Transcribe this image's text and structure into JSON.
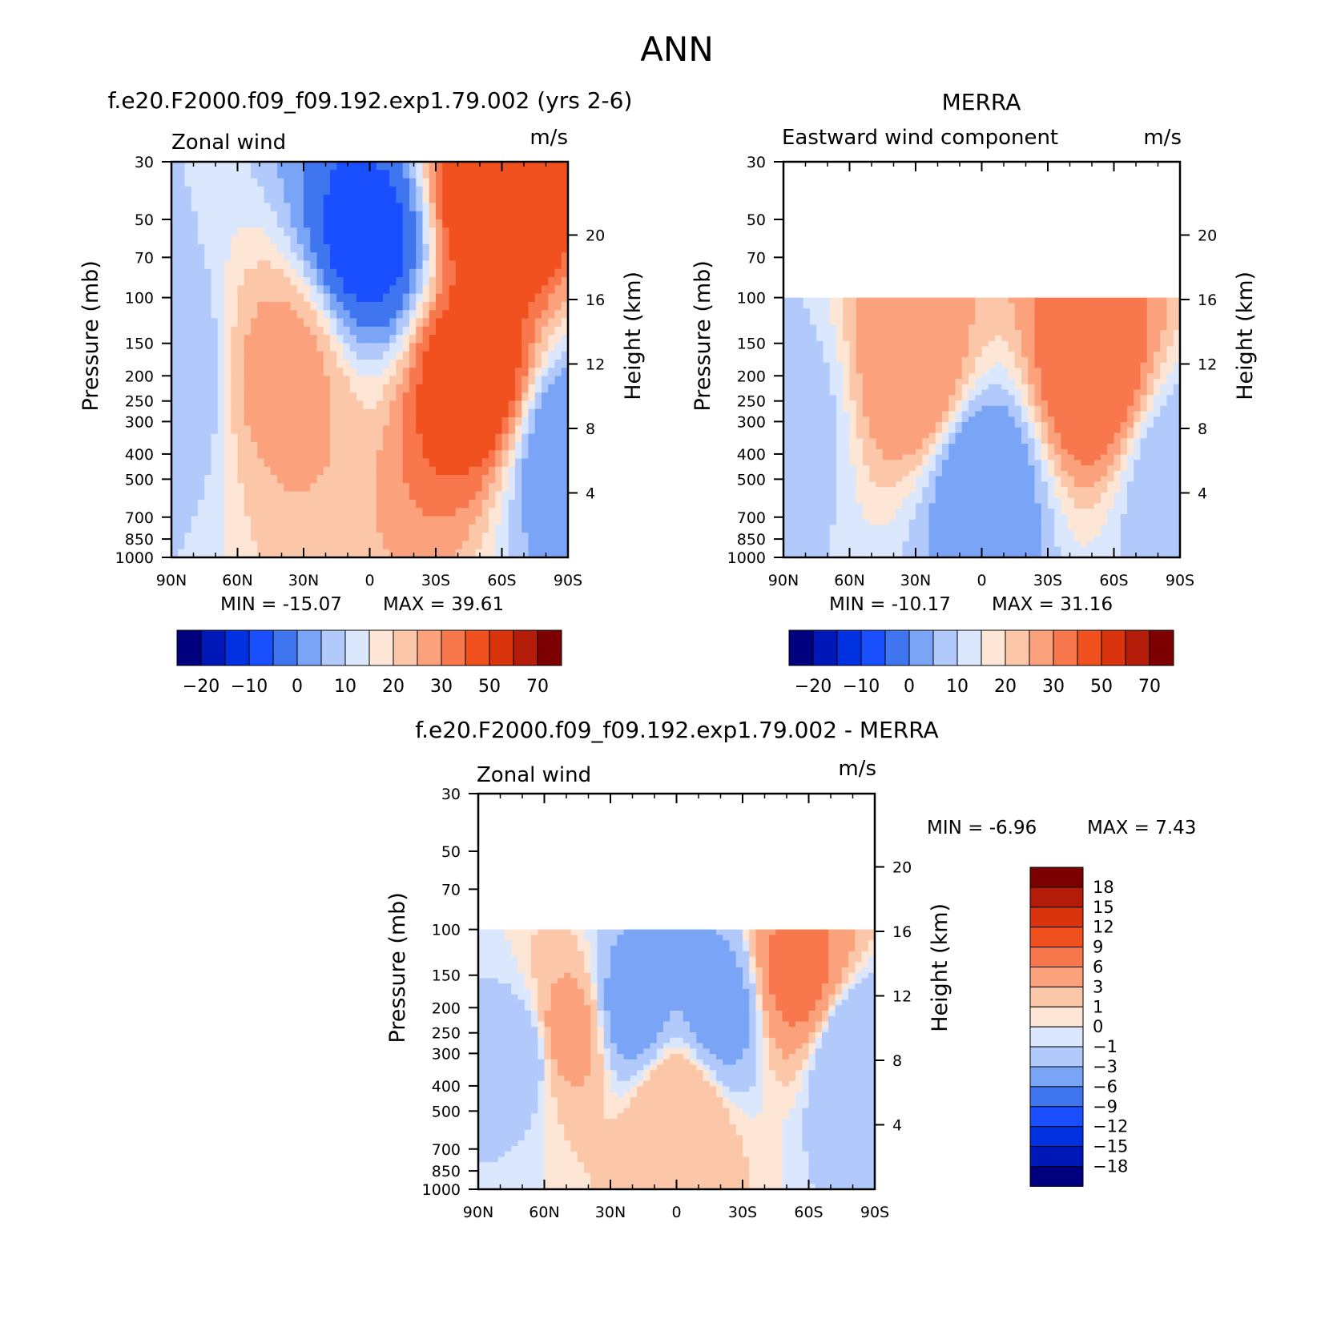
{
  "figure_title": "ANN",
  "axes": {
    "pressure_label": "Pressure (mb)",
    "height_label": "Height (km)",
    "pressure_ticks": [
      30,
      50,
      70,
      100,
      150,
      200,
      250,
      300,
      400,
      500,
      700,
      850,
      1000
    ],
    "height_ticks": [
      4,
      8,
      12,
      16,
      20
    ],
    "lat_ticks": [
      "90N",
      "60N",
      "30N",
      "0",
      "30S",
      "60S",
      "90S"
    ]
  },
  "palettes": {
    "abs": [
      "#00007f",
      "#0018b8",
      "#0031e0",
      "#1a4fff",
      "#3f76f0",
      "#7aa5f7",
      "#b1c9fb",
      "#dbe7fc",
      "#fde6d5",
      "#fcc6a8",
      "#fba27d",
      "#f8774c",
      "#f1501f",
      "#d9340e",
      "#b21c08",
      "#7d0000"
    ],
    "diff": [
      "#00007f",
      "#0018b8",
      "#0031e0",
      "#1a4fff",
      "#3f76f0",
      "#7aa5f7",
      "#b1c9fb",
      "#dbe7fc",
      "#fde6d5",
      "#fcc6a8",
      "#fba27d",
      "#f8774c",
      "#f1501f",
      "#d9340e",
      "#b21c08",
      "#7d0000"
    ]
  },
  "colorbar_abs_labels": [
    "-20",
    "-10",
    "0",
    "10",
    "20",
    "30",
    "50",
    "70"
  ],
  "colorbar_diff_labels": [
    "18",
    "15",
    "12",
    "9",
    "6",
    "3",
    "1",
    "0",
    "-1",
    "-3",
    "-6",
    "-9",
    "-12",
    "-15",
    "-18"
  ],
  "chart_data": [
    {
      "type": "heatmap",
      "title": "f.e20.F2000.f09_f09.192.exp1.79.002 (yrs 2-6)",
      "left_label": "Zonal wind",
      "units": "m/s",
      "xlabel": "",
      "ylabel": "Pressure (mb)",
      "y2label": "Height (km)",
      "xlim": [
        "90N",
        "90S"
      ],
      "ylim": [
        1000,
        30
      ],
      "min_text": "MIN = -15.07",
      "max_text": "MAX = 39.61",
      "min": -15.07,
      "max": 39.61,
      "data_top_pressure": 30,
      "features": [
        {
          "lat": 90,
          "p": 200,
          "u": 0
        },
        {
          "lat": 40,
          "p": 200,
          "u": 22
        },
        {
          "lat": 0,
          "p": 60,
          "u": -12
        },
        {
          "lat": -48,
          "p": 200,
          "u": 35
        },
        {
          "lat": -55,
          "p": 40,
          "u": 38
        },
        {
          "lat": -90,
          "p": 400,
          "u": -5
        }
      ]
    },
    {
      "type": "heatmap",
      "title": "MERRA",
      "left_label": "Eastward wind component",
      "units": "m/s",
      "xlabel": "",
      "ylabel": "Pressure (mb)",
      "y2label": "Height (km)",
      "xlim": [
        "90N",
        "90S"
      ],
      "ylim": [
        1000,
        30
      ],
      "min_text": "MIN = -10.17",
      "max_text": "MAX = 31.16",
      "min": -10.17,
      "max": 31.16,
      "data_top_pressure": 100,
      "features": [
        {
          "lat": 90,
          "p": 300,
          "u": 2
        },
        {
          "lat": 30,
          "p": 200,
          "u": 25
        },
        {
          "lat": 0,
          "p": 500,
          "u": -5
        },
        {
          "lat": -50,
          "p": 200,
          "u": 30
        },
        {
          "lat": -90,
          "p": 500,
          "u": 0
        }
      ]
    },
    {
      "type": "heatmap",
      "title": "f.e20.F2000.f09_f09.192.exp1.79.002 - MERRA",
      "left_label": "Zonal wind",
      "units": "m/s",
      "xlabel": "",
      "ylabel": "Pressure (mb)",
      "y2label": "Height (km)",
      "xlim": [
        "90N",
        "90S"
      ],
      "ylim": [
        1000,
        30
      ],
      "min_text": "MIN = -6.96",
      "max_text": "MAX = 7.43",
      "min": -6.96,
      "max": 7.43,
      "data_top_pressure": 100,
      "features": [
        {
          "lat": 70,
          "p": 300,
          "u": -2
        },
        {
          "lat": 50,
          "p": 250,
          "u": 4
        },
        {
          "lat": 20,
          "p": 200,
          "u": -4
        },
        {
          "lat": 0,
          "p": 500,
          "u": 3
        },
        {
          "lat": -20,
          "p": 200,
          "u": -4
        },
        {
          "lat": -55,
          "p": 150,
          "u": 7
        },
        {
          "lat": -80,
          "p": 300,
          "u": -3
        }
      ]
    }
  ]
}
